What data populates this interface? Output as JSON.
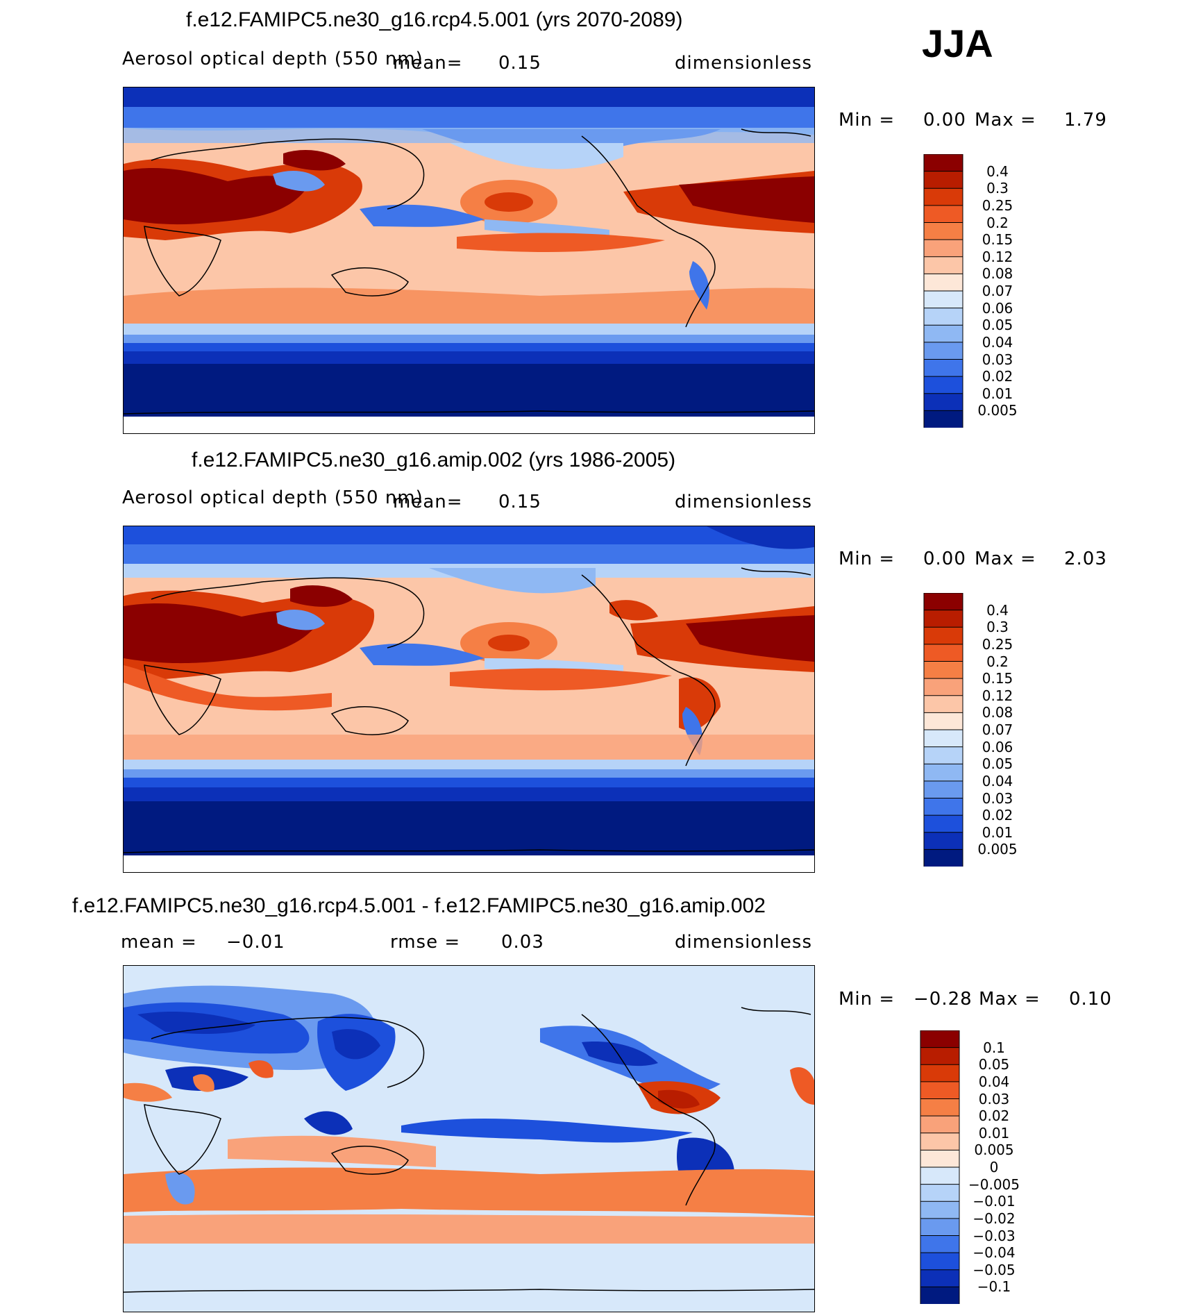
{
  "season": "JJA",
  "panels": [
    {
      "title": "f.e12.FAMIPC5.ne30_g16.rcp4.5.001 (yrs 2070-2089)",
      "variable": "Aerosol optical depth (550 nm)",
      "mean_label": "mean=",
      "mean_value": "0.15",
      "units": "dimensionless",
      "min_label": "Min =",
      "min_value": "0.00",
      "max_label": "Max =",
      "max_value": "1.79",
      "colorbar": {
        "labels": [
          "0.4",
          "0.3",
          "0.25",
          "0.2",
          "0.15",
          "0.12",
          "0.08",
          "0.07",
          "0.06",
          "0.05",
          "0.04",
          "0.03",
          "0.02",
          "0.01",
          "0.005"
        ],
        "colors": [
          "#8b0000",
          "#b81d00",
          "#d93a08",
          "#ee5a25",
          "#f57f45",
          "#f9a27a",
          "#fcc6a8",
          "#fde7d8",
          "#d7e8fa",
          "#b6d3f8",
          "#8fb8f3",
          "#6a9aef",
          "#3f75ea",
          "#1d50dc",
          "#0c30b8",
          "#001a80"
        ]
      }
    },
    {
      "title": "f.e12.FAMIPC5.ne30_g16.amip.002 (yrs 1986-2005)",
      "variable": "Aerosol optical depth (550 nm)",
      "mean_label": "mean=",
      "mean_value": "0.15",
      "units": "dimensionless",
      "min_label": "Min =",
      "min_value": "0.00",
      "max_label": "Max =",
      "max_value": "2.03",
      "colorbar": {
        "labels": [
          "0.4",
          "0.3",
          "0.25",
          "0.2",
          "0.15",
          "0.12",
          "0.08",
          "0.07",
          "0.06",
          "0.05",
          "0.04",
          "0.03",
          "0.02",
          "0.01",
          "0.005"
        ],
        "colors": [
          "#8b0000",
          "#b81d00",
          "#d93a08",
          "#ee5a25",
          "#f57f45",
          "#f9a27a",
          "#fcc6a8",
          "#fde7d8",
          "#d7e8fa",
          "#b6d3f8",
          "#8fb8f3",
          "#6a9aef",
          "#3f75ea",
          "#1d50dc",
          "#0c30b8",
          "#001a80"
        ]
      }
    },
    {
      "title": "f.e12.FAMIPC5.ne30_g16.rcp4.5.001 - f.e12.FAMIPC5.ne30_g16.amip.002",
      "mean_label": "mean =",
      "mean_value": "−0.01",
      "rmse_label": "rmse =",
      "rmse_value": "0.03",
      "units": "dimensionless",
      "min_label": "Min =",
      "min_value": "−0.28",
      "max_label": "Max =",
      "max_value": "0.10",
      "colorbar": {
        "labels": [
          "0.1",
          "0.05",
          "0.04",
          "0.03",
          "0.02",
          "0.01",
          "0.005",
          "0",
          "−0.005",
          "−0.01",
          "−0.02",
          "−0.03",
          "−0.04",
          "−0.05",
          "−0.1"
        ],
        "colors": [
          "#8b0000",
          "#b81d00",
          "#d93a08",
          "#ee5a25",
          "#f57f45",
          "#f9a27a",
          "#fcc6a8",
          "#fde7d8",
          "#d7e8fa",
          "#b6d3f8",
          "#8fb8f3",
          "#6a9aef",
          "#3f75ea",
          "#1d50dc",
          "#0c30b8",
          "#001a80"
        ]
      }
    }
  ]
}
